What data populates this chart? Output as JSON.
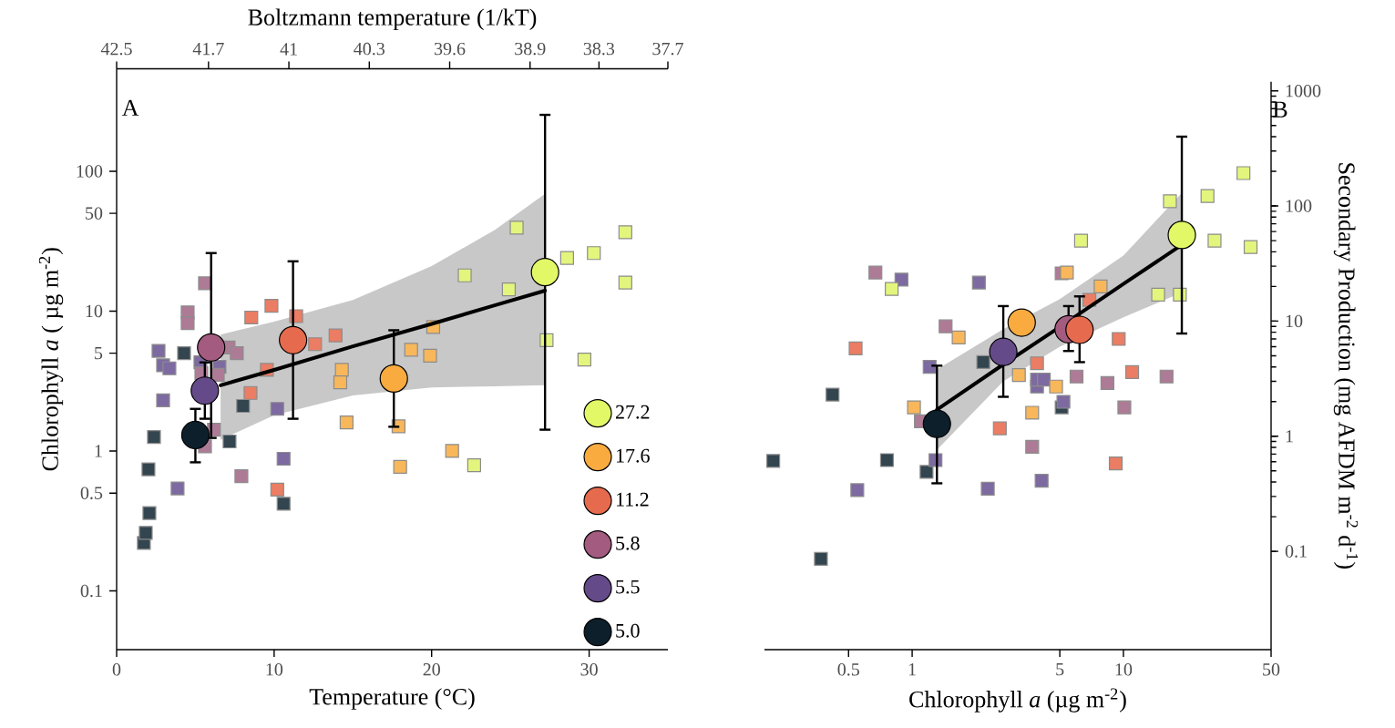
{
  "chart_data": [
    {
      "type": "scatter",
      "xlabel": "Temperature (°C)",
      "ylabel": "Chlorophyll  *a* ( µg m$^{-2}$)",
      "x2label": "Boltzmann temperature (1/kT)",
      "annotations": [
        "A"
      ],
      "xlim": [
        0,
        35
      ],
      "ylim": [
        0.038,
        540
      ],
      "xticks": [
        0,
        10,
        20,
        30
      ],
      "yticks": [
        0.1,
        0.5,
        1,
        5,
        10,
        50,
        100
      ],
      "x2lim": [
        42.5,
        37.7
      ],
      "x2ticks": [
        42.5,
        41.7,
        41,
        40.3,
        39.6,
        38.9,
        38.3,
        37.7
      ],
      "log": "y",
      "legend": "bottom right",
      "series": [
        {
          "color": "#33454f",
          "marker": "square",
          "x": [
            1.73,
            1.85,
            2.08,
            2.02,
            2.37,
            4.28,
            7.17,
            8.03,
            10.6
          ],
          "values": [
            0.22,
            0.26,
            0.36,
            0.74,
            1.26,
            5.0,
            1.17,
            2.1,
            0.42
          ]
        },
        {
          "color": "#7d6aa0",
          "marker": "square",
          "x": [
            2.66,
            2.95,
            3.35,
            2.95,
            3.87,
            5.32,
            6.53,
            10.2,
            10.6
          ],
          "values": [
            5.2,
            4.1,
            3.9,
            2.3,
            0.54,
            4.3,
            4.0,
            2.0,
            0.88
          ]
        },
        {
          "color": "#ae7b96",
          "marker": "square",
          "x": [
            5.61,
            4.51,
            4.51,
            7.11,
            7.63,
            5.38,
            6.42,
            6.18,
            5.61,
            7.92
          ],
          "values": [
            15.8,
            9.8,
            8.2,
            5.5,
            5.0,
            3.6,
            3.5,
            1.42,
            1.08,
            0.66
          ]
        },
        {
          "color": "#ea7d63",
          "marker": "square",
          "x": [
            8.55,
            9.83,
            11.4,
            12.6,
            13.9,
            9.54,
            8.5,
            10.2
          ],
          "values": [
            9.0,
            10.9,
            9.2,
            5.8,
            6.7,
            3.8,
            2.6,
            0.53
          ]
        },
        {
          "color": "#f8b75a",
          "marker": "square",
          "x": [
            20.1,
            18.7,
            19.9,
            14.3,
            14.2,
            14.6,
            17.9,
            18.0,
            21.3
          ],
          "values": [
            7.7,
            5.3,
            4.8,
            3.8,
            3.1,
            1.6,
            1.5,
            0.77,
            1.0
          ]
        },
        {
          "color": "#e4f57d",
          "marker": "square",
          "x": [
            25.4,
            22.1,
            24.9,
            28.6,
            30.3,
            32.3,
            32.3,
            27.3,
            29.7,
            22.7
          ],
          "values": [
            39.5,
            18,
            14.3,
            24,
            26,
            36.6,
            16,
            6.2,
            4.5,
            0.79
          ]
        },
        {
          "type": "line",
          "color": "#000000",
          "marker": "none",
          "line_style": "solid",
          "x": [
            6.6,
            10,
            15,
            20,
            24,
            27.2
          ],
          "values": [
            2.95,
            3.8,
            5.6,
            8.1,
            11,
            14
          ],
          "lower": [
            1.2,
            1.8,
            2.5,
            2.85,
            2.9,
            2.95
          ],
          "upper": [
            6.8,
            8.4,
            12,
            21,
            38,
            69
          ]
        },
        {
          "name": "27.2",
          "color": "#e3f866",
          "marker": "circle",
          "x": [
            27.2
          ],
          "values": [
            19
          ],
          "errors": [
            [
              1.42,
              253
            ]
          ]
        },
        {
          "name": "17.6",
          "color": "#f9ab3f",
          "marker": "circle",
          "x": [
            17.6
          ],
          "values": [
            3.3
          ],
          "errors": [
            [
              1.49,
              7.3
            ]
          ]
        },
        {
          "name": "11.2",
          "color": "#e66b4e",
          "marker": "circle",
          "x": [
            11.2
          ],
          "values": [
            6.2
          ],
          "errors": [
            [
              1.7,
              22.7
            ]
          ]
        },
        {
          "name": "5.8",
          "color": "#a35b7f",
          "marker": "circle",
          "x": [
            6.0
          ],
          "values": [
            5.5
          ],
          "errors": [
            [
              1.24,
              26
            ]
          ]
        },
        {
          "name": "5.5",
          "color": "#654a89",
          "marker": "circle",
          "x": [
            5.6
          ],
          "values": [
            2.7
          ],
          "errors": [
            [
              1.7,
              4.3
            ]
          ]
        },
        {
          "name": "5.0",
          "color": "#0c1f2b",
          "marker": "circle",
          "x": [
            5.0
          ],
          "values": [
            1.3
          ],
          "errors": [
            [
              0.83,
              2.0
            ]
          ]
        }
      ]
    },
    {
      "type": "scatter",
      "xlabel": "Chlorophyll  *a* (µg m$^{-2}$)",
      "ylabel": "Secondary Production (mg AFDM  m$^{-2}$ d$^{-1}$)",
      "annotations": [
        "B"
      ],
      "xlim": [
        0.2,
        50
      ],
      "ylim": [
        0.014,
        1200
      ],
      "xticks": [
        0.5,
        1,
        5,
        10,
        50
      ],
      "yticks": [
        0.1,
        1,
        10,
        100,
        1000
      ],
      "log": "xy",
      "series": [
        {
          "color": "#33454f",
          "marker": "square",
          "x": [
            0.22,
            0.37,
            0.42,
            0.76,
            1.17,
            2.17,
            5.1
          ],
          "values": [
            0.61,
            0.086,
            2.3,
            0.62,
            0.49,
            4.4,
            1.78
          ]
        },
        {
          "color": "#7d6aa0",
          "marker": "square",
          "x": [
            0.55,
            0.89,
            1.21,
            1.29,
            2.07,
            2.28,
            3.9,
            3.9,
            4.2,
            4.1,
            5.2
          ],
          "values": [
            0.34,
            22.9,
            4.0,
            0.62,
            21.6,
            0.35,
            2.7,
            3.1,
            3.1,
            0.41,
            1.99
          ]
        },
        {
          "color": "#ae7b96",
          "marker": "square",
          "x": [
            0.67,
            1.44,
            1.1,
            3.7,
            5.1,
            6.0,
            8.4,
            10.1,
            16
          ],
          "values": [
            26.4,
            9.0,
            1.35,
            0.81,
            26,
            3.3,
            2.9,
            1.78,
            3.3
          ]
        },
        {
          "color": "#ea7d63",
          "marker": "square",
          "x": [
            0.54,
            2.6,
            3.9,
            6.9,
            9.5,
            11,
            9.2
          ],
          "values": [
            5.8,
            1.17,
            4.3,
            15.3,
            7.0,
            3.6,
            0.58
          ]
        },
        {
          "color": "#f8b75a",
          "marker": "square",
          "x": [
            1.02,
            1.66,
            3.2,
            3.7,
            4.8,
            5.4,
            7.8
          ],
          "values": [
            1.78,
            7.2,
            3.4,
            1.6,
            2.7,
            26.4,
            20
          ]
        },
        {
          "color": "#e4f57d",
          "marker": "square",
          "x": [
            0.8,
            6.3,
            14.6,
            18.5,
            16.6,
            25,
            27,
            37,
            40
          ],
          "values": [
            19,
            50,
            17,
            17,
            110,
            122,
            50,
            193,
            44
          ]
        },
        {
          "type": "line",
          "color": "#000000",
          "marker": "none",
          "line_style": "solid",
          "x": [
            1.31,
            2.7,
            5.0,
            10,
            18.9
          ],
          "values": [
            1.7,
            4.2,
            8.9,
            21,
            46
          ],
          "lower": [
            0.76,
            3.0,
            6.0,
            10.8,
            17.7
          ],
          "upper": [
            3.8,
            8.5,
            15.5,
            37,
            130
          ]
        },
        {
          "color": "#0c1f2b",
          "marker": "circle",
          "x": [
            1.31
          ],
          "values": [
            1.28
          ],
          "errors": [
            [
              0.39,
              4.1
            ]
          ]
        },
        {
          "color": "#654a89",
          "marker": "circle",
          "x": [
            2.7
          ],
          "values": [
            5.4
          ],
          "errors": [
            [
              2.2,
              13.5
            ]
          ]
        },
        {
          "color": "#f9ab3f",
          "marker": "circle",
          "x": [
            3.3
          ],
          "values": [
            9.7
          ]
        },
        {
          "color": "#a35b7f",
          "marker": "circle",
          "x": [
            5.5
          ],
          "values": [
            8.5
          ],
          "errors": [
            [
              5.5,
              13.5
            ]
          ]
        },
        {
          "color": "#e66b4e",
          "marker": "circle",
          "x": [
            6.2
          ],
          "values": [
            8.4
          ],
          "errors": [
            [
              4.4,
              16.4
            ]
          ]
        },
        {
          "color": "#e3f866",
          "marker": "circle",
          "x": [
            18.9
          ],
          "values": [
            56
          ],
          "errors": [
            [
              7.8,
              400
            ]
          ]
        }
      ]
    }
  ]
}
